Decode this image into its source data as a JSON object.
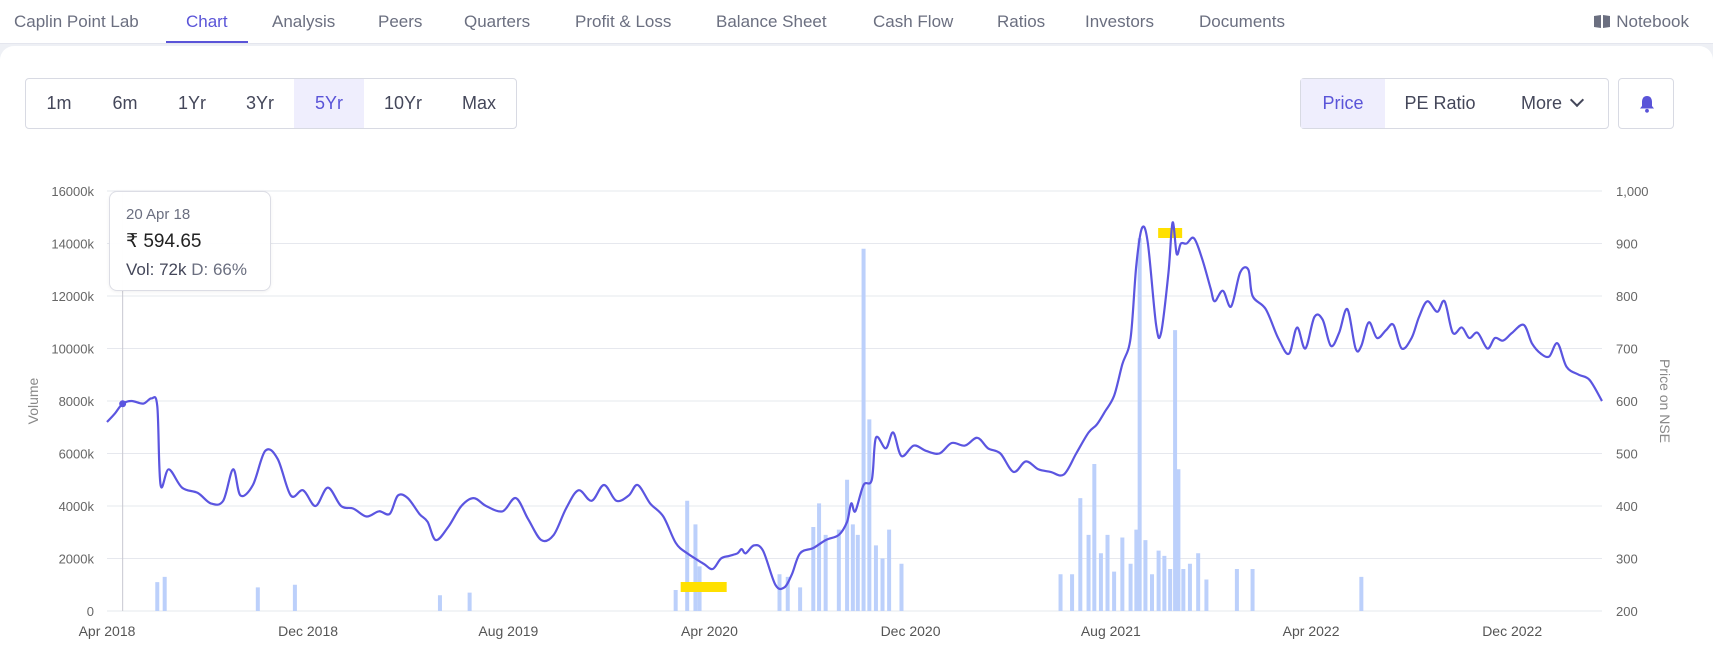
{
  "nav": {
    "company": "Caplin Point Lab",
    "tabs": [
      "Chart",
      "Analysis",
      "Peers",
      "Quarters",
      "Profit & Loss",
      "Balance Sheet",
      "Cash Flow",
      "Ratios",
      "Investors",
      "Documents"
    ],
    "active_tab": "Chart",
    "notebook": "Notebook"
  },
  "ranges": {
    "items": [
      "1m",
      "6m",
      "1Yr",
      "3Yr",
      "5Yr",
      "10Yr",
      "Max"
    ],
    "active": "5Yr"
  },
  "metrics": {
    "price": "Price",
    "pe": "PE Ratio",
    "more": "More",
    "active": "Price"
  },
  "colors": {
    "accent": "#5a54d8",
    "line": "#5b55e0",
    "volume_bar": "#bcd0fb",
    "highlight": "#ffe000"
  },
  "tooltip": {
    "date": "20 Apr 18",
    "price": "₹ 594.65",
    "vol": "Vol: 72k",
    "delivery": "D: 66%"
  },
  "chart_data": {
    "type": "line",
    "ylabel_left": "Volume",
    "ylabel_right": "Price on NSE",
    "ylim_left": [
      0,
      16000
    ],
    "ylim_right": [
      200,
      1000
    ],
    "yticks_left": [
      "0",
      "2000k",
      "4000k",
      "6000k",
      "8000k",
      "10000k",
      "12000k",
      "14000k",
      "16000k"
    ],
    "yticks_right": [
      "200",
      "300",
      "400",
      "500",
      "600",
      "700",
      "800",
      "900",
      "1,000"
    ],
    "xticks": [
      "Apr 2018",
      "Dec 2018",
      "Aug 2019",
      "Apr 2020",
      "Dec 2020",
      "Aug 2021",
      "Apr 2022",
      "Dec 2022"
    ],
    "x_range": [
      "2018-04-01",
      "2023-03-20"
    ],
    "grid": true,
    "series": [
      {
        "name": "Price on NSE",
        "axis": "right",
        "points": [
          [
            "2018-04-01",
            560
          ],
          [
            "2018-04-10",
            575
          ],
          [
            "2018-04-20",
            595
          ],
          [
            "2018-05-01",
            600
          ],
          [
            "2018-05-15",
            595
          ],
          [
            "2018-05-25",
            605
          ],
          [
            "2018-06-01",
            590
          ],
          [
            "2018-06-05",
            440
          ],
          [
            "2018-06-15",
            470
          ],
          [
            "2018-07-01",
            435
          ],
          [
            "2018-07-20",
            425
          ],
          [
            "2018-08-05",
            405
          ],
          [
            "2018-08-20",
            410
          ],
          [
            "2018-09-01",
            470
          ],
          [
            "2018-09-10",
            420
          ],
          [
            "2018-09-25",
            440
          ],
          [
            "2018-10-10",
            505
          ],
          [
            "2018-10-25",
            490
          ],
          [
            "2018-11-10",
            420
          ],
          [
            "2018-11-25",
            430
          ],
          [
            "2018-12-10",
            400
          ],
          [
            "2018-12-25",
            435
          ],
          [
            "2019-01-10",
            400
          ],
          [
            "2019-01-25",
            395
          ],
          [
            "2019-02-10",
            380
          ],
          [
            "2019-02-25",
            390
          ],
          [
            "2019-03-10",
            385
          ],
          [
            "2019-03-20",
            420
          ],
          [
            "2019-04-01",
            415
          ],
          [
            "2019-04-15",
            385
          ],
          [
            "2019-04-25",
            370
          ],
          [
            "2019-05-05",
            335
          ],
          [
            "2019-05-20",
            360
          ],
          [
            "2019-06-05",
            400
          ],
          [
            "2019-06-20",
            415
          ],
          [
            "2019-07-05",
            400
          ],
          [
            "2019-07-25",
            390
          ],
          [
            "2019-08-10",
            415
          ],
          [
            "2019-08-25",
            375
          ],
          [
            "2019-09-10",
            335
          ],
          [
            "2019-09-25",
            345
          ],
          [
            "2019-10-10",
            395
          ],
          [
            "2019-10-25",
            430
          ],
          [
            "2019-11-10",
            410
          ],
          [
            "2019-11-25",
            440
          ],
          [
            "2019-12-10",
            410
          ],
          [
            "2019-12-25",
            420
          ],
          [
            "2020-01-05",
            440
          ],
          [
            "2020-01-20",
            405
          ],
          [
            "2020-02-05",
            380
          ],
          [
            "2020-02-20",
            330
          ],
          [
            "2020-03-05",
            310
          ],
          [
            "2020-03-25",
            290
          ],
          [
            "2020-04-05",
            280
          ],
          [
            "2020-04-15",
            300
          ],
          [
            "2020-04-25",
            305
          ],
          [
            "2020-05-05",
            310
          ],
          [
            "2020-05-10",
            318
          ],
          [
            "2020-05-15",
            310
          ],
          [
            "2020-05-25",
            325
          ],
          [
            "2020-06-05",
            315
          ],
          [
            "2020-06-20",
            250
          ],
          [
            "2020-07-01",
            245
          ],
          [
            "2020-07-10",
            270
          ],
          [
            "2020-07-20",
            310
          ],
          [
            "2020-08-05",
            320
          ],
          [
            "2020-08-20",
            335
          ],
          [
            "2020-09-05",
            345
          ],
          [
            "2020-09-15",
            370
          ],
          [
            "2020-09-20",
            405
          ],
          [
            "2020-09-25",
            390
          ],
          [
            "2020-10-05",
            440
          ],
          [
            "2020-10-15",
            450
          ],
          [
            "2020-10-20",
            530
          ],
          [
            "2020-11-01",
            510
          ],
          [
            "2020-11-10",
            540
          ],
          [
            "2020-11-20",
            495
          ],
          [
            "2020-12-05",
            515
          ],
          [
            "2020-12-20",
            505
          ],
          [
            "2021-01-05",
            500
          ],
          [
            "2021-01-20",
            520
          ],
          [
            "2021-02-05",
            515
          ],
          [
            "2021-02-20",
            530
          ],
          [
            "2021-03-05",
            510
          ],
          [
            "2021-03-20",
            500
          ],
          [
            "2021-04-05",
            465
          ],
          [
            "2021-04-20",
            485
          ],
          [
            "2021-05-05",
            470
          ],
          [
            "2021-05-20",
            465
          ],
          [
            "2021-06-05",
            460
          ],
          [
            "2021-06-20",
            500
          ],
          [
            "2021-07-05",
            540
          ],
          [
            "2021-07-15",
            555
          ],
          [
            "2021-07-25",
            580
          ],
          [
            "2021-08-05",
            610
          ],
          [
            "2021-08-15",
            670
          ],
          [
            "2021-08-25",
            720
          ],
          [
            "2021-09-01",
            860
          ],
          [
            "2021-09-08",
            930
          ],
          [
            "2021-09-15",
            900
          ],
          [
            "2021-09-25",
            745
          ],
          [
            "2021-10-01",
            730
          ],
          [
            "2021-10-10",
            845
          ],
          [
            "2021-10-15",
            940
          ],
          [
            "2021-10-20",
            880
          ],
          [
            "2021-10-25",
            900
          ],
          [
            "2021-11-01",
            900
          ],
          [
            "2021-11-10",
            910
          ],
          [
            "2021-11-20",
            870
          ],
          [
            "2021-11-30",
            815
          ],
          [
            "2021-12-05",
            790
          ],
          [
            "2021-12-15",
            810
          ],
          [
            "2021-12-25",
            780
          ],
          [
            "2022-01-05",
            845
          ],
          [
            "2022-01-15",
            850
          ],
          [
            "2022-01-20",
            800
          ],
          [
            "2022-02-05",
            775
          ],
          [
            "2022-02-20",
            720
          ],
          [
            "2022-03-05",
            690
          ],
          [
            "2022-03-15",
            740
          ],
          [
            "2022-03-25",
            700
          ],
          [
            "2022-04-05",
            760
          ],
          [
            "2022-04-15",
            755
          ],
          [
            "2022-04-25",
            705
          ],
          [
            "2022-05-05",
            730
          ],
          [
            "2022-05-15",
            775
          ],
          [
            "2022-05-25",
            700
          ],
          [
            "2022-06-01",
            705
          ],
          [
            "2022-06-10",
            750
          ],
          [
            "2022-06-20",
            720
          ],
          [
            "2022-07-01",
            735
          ],
          [
            "2022-07-10",
            745
          ],
          [
            "2022-07-20",
            700
          ],
          [
            "2022-08-01",
            720
          ],
          [
            "2022-08-10",
            760
          ],
          [
            "2022-08-20",
            790
          ],
          [
            "2022-09-01",
            770
          ],
          [
            "2022-09-10",
            790
          ],
          [
            "2022-09-20",
            730
          ],
          [
            "2022-10-01",
            740
          ],
          [
            "2022-10-10",
            720
          ],
          [
            "2022-10-20",
            730
          ],
          [
            "2022-11-01",
            700
          ],
          [
            "2022-11-10",
            720
          ],
          [
            "2022-11-20",
            715
          ],
          [
            "2022-12-01",
            730
          ],
          [
            "2022-12-15",
            745
          ],
          [
            "2022-12-25",
            710
          ],
          [
            "2023-01-05",
            690
          ],
          [
            "2023-01-15",
            685
          ],
          [
            "2023-01-25",
            710
          ],
          [
            "2023-02-05",
            665
          ],
          [
            "2023-02-20",
            650
          ],
          [
            "2023-03-05",
            640
          ],
          [
            "2023-03-20",
            600
          ]
        ]
      },
      {
        "name": "Volume",
        "axis": "left",
        "points": [
          [
            "2018-06-01",
            1100
          ],
          [
            "2018-06-10",
            1300
          ],
          [
            "2018-10-01",
            900
          ],
          [
            "2018-11-15",
            1000
          ],
          [
            "2019-05-10",
            600
          ],
          [
            "2019-06-15",
            700
          ],
          [
            "2020-02-20",
            800
          ],
          [
            "2020-03-05",
            4200
          ],
          [
            "2020-03-15",
            3300
          ],
          [
            "2020-03-20",
            1700
          ],
          [
            "2020-06-25",
            1400
          ],
          [
            "2020-07-05",
            1300
          ],
          [
            "2020-07-20",
            900
          ],
          [
            "2020-08-05",
            3200
          ],
          [
            "2020-08-12",
            4100
          ],
          [
            "2020-08-20",
            2900
          ],
          [
            "2020-09-05",
            3100
          ],
          [
            "2020-09-15",
            5000
          ],
          [
            "2020-09-22",
            3300
          ],
          [
            "2020-09-28",
            2900
          ],
          [
            "2020-10-05",
            13800
          ],
          [
            "2020-10-12",
            7300
          ],
          [
            "2020-10-20",
            2500
          ],
          [
            "2020-10-28",
            2000
          ],
          [
            "2020-11-05",
            3100
          ],
          [
            "2020-11-20",
            1800
          ],
          [
            "2021-06-01",
            1400
          ],
          [
            "2021-06-15",
            1400
          ],
          [
            "2021-06-25",
            4300
          ],
          [
            "2021-07-05",
            2900
          ],
          [
            "2021-07-12",
            5600
          ],
          [
            "2021-07-20",
            2200
          ],
          [
            "2021-07-28",
            2900
          ],
          [
            "2021-08-05",
            1500
          ],
          [
            "2021-08-15",
            2800
          ],
          [
            "2021-08-25",
            1800
          ],
          [
            "2021-09-01",
            3100
          ],
          [
            "2021-09-05",
            14200
          ],
          [
            "2021-09-12",
            2700
          ],
          [
            "2021-09-20",
            1400
          ],
          [
            "2021-09-28",
            2300
          ],
          [
            "2021-10-05",
            2100
          ],
          [
            "2021-10-12",
            1600
          ],
          [
            "2021-10-18",
            10700
          ],
          [
            "2021-10-22",
            5400
          ],
          [
            "2021-10-28",
            1600
          ],
          [
            "2021-11-05",
            1800
          ],
          [
            "2021-11-15",
            2200
          ],
          [
            "2021-11-25",
            1200
          ],
          [
            "2022-01-01",
            1600
          ],
          [
            "2022-01-20",
            1600
          ],
          [
            "2022-06-01",
            1300
          ]
        ]
      }
    ],
    "highlights": [
      [
        "2020-03-25",
        "low"
      ],
      [
        "2021-10-12",
        "high"
      ]
    ]
  }
}
